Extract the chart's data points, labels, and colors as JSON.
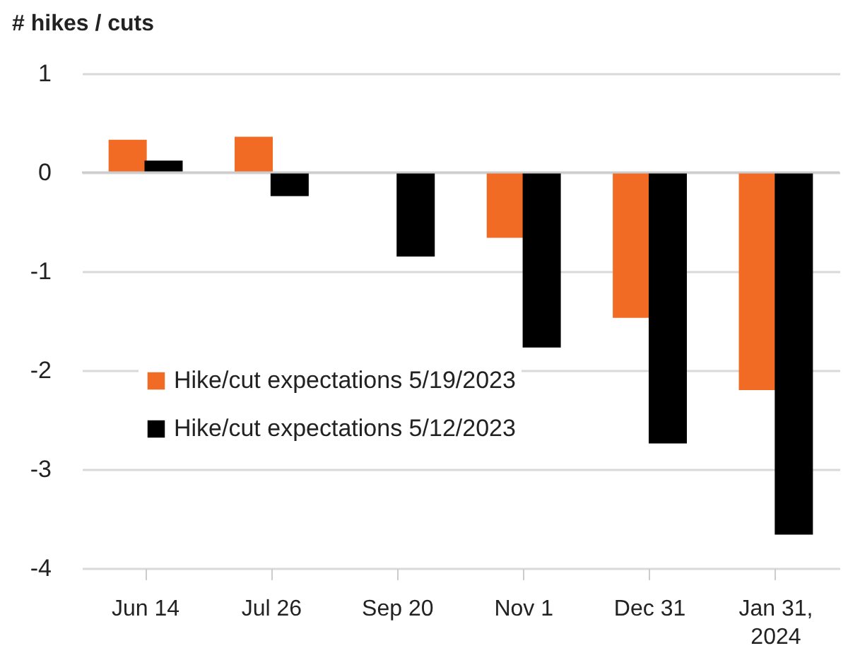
{
  "chart_data": {
    "type": "bar",
    "ylabel": "# hikes / cuts",
    "categories": [
      "Jun 14",
      "Jul 26",
      "Sep 20",
      "Nov 1",
      "Dec 31",
      "Jan 31, 2024"
    ],
    "series": [
      {
        "name": "Hike/cut expectations 5/19/2023",
        "color": "#f26b25",
        "values": [
          0.33,
          0.36,
          0,
          -0.66,
          -1.47,
          -2.2
        ]
      },
      {
        "name": "Hike/cut expectations 5/12/2023",
        "color": "#000000",
        "values": [
          0.12,
          -0.24,
          -0.85,
          -1.77,
          -2.74,
          -3.66
        ]
      }
    ],
    "ylim": [
      -4,
      1
    ],
    "yticks": [
      -4,
      -3,
      -2,
      -1,
      0,
      1
    ],
    "grid": "y",
    "legend": "left"
  }
}
